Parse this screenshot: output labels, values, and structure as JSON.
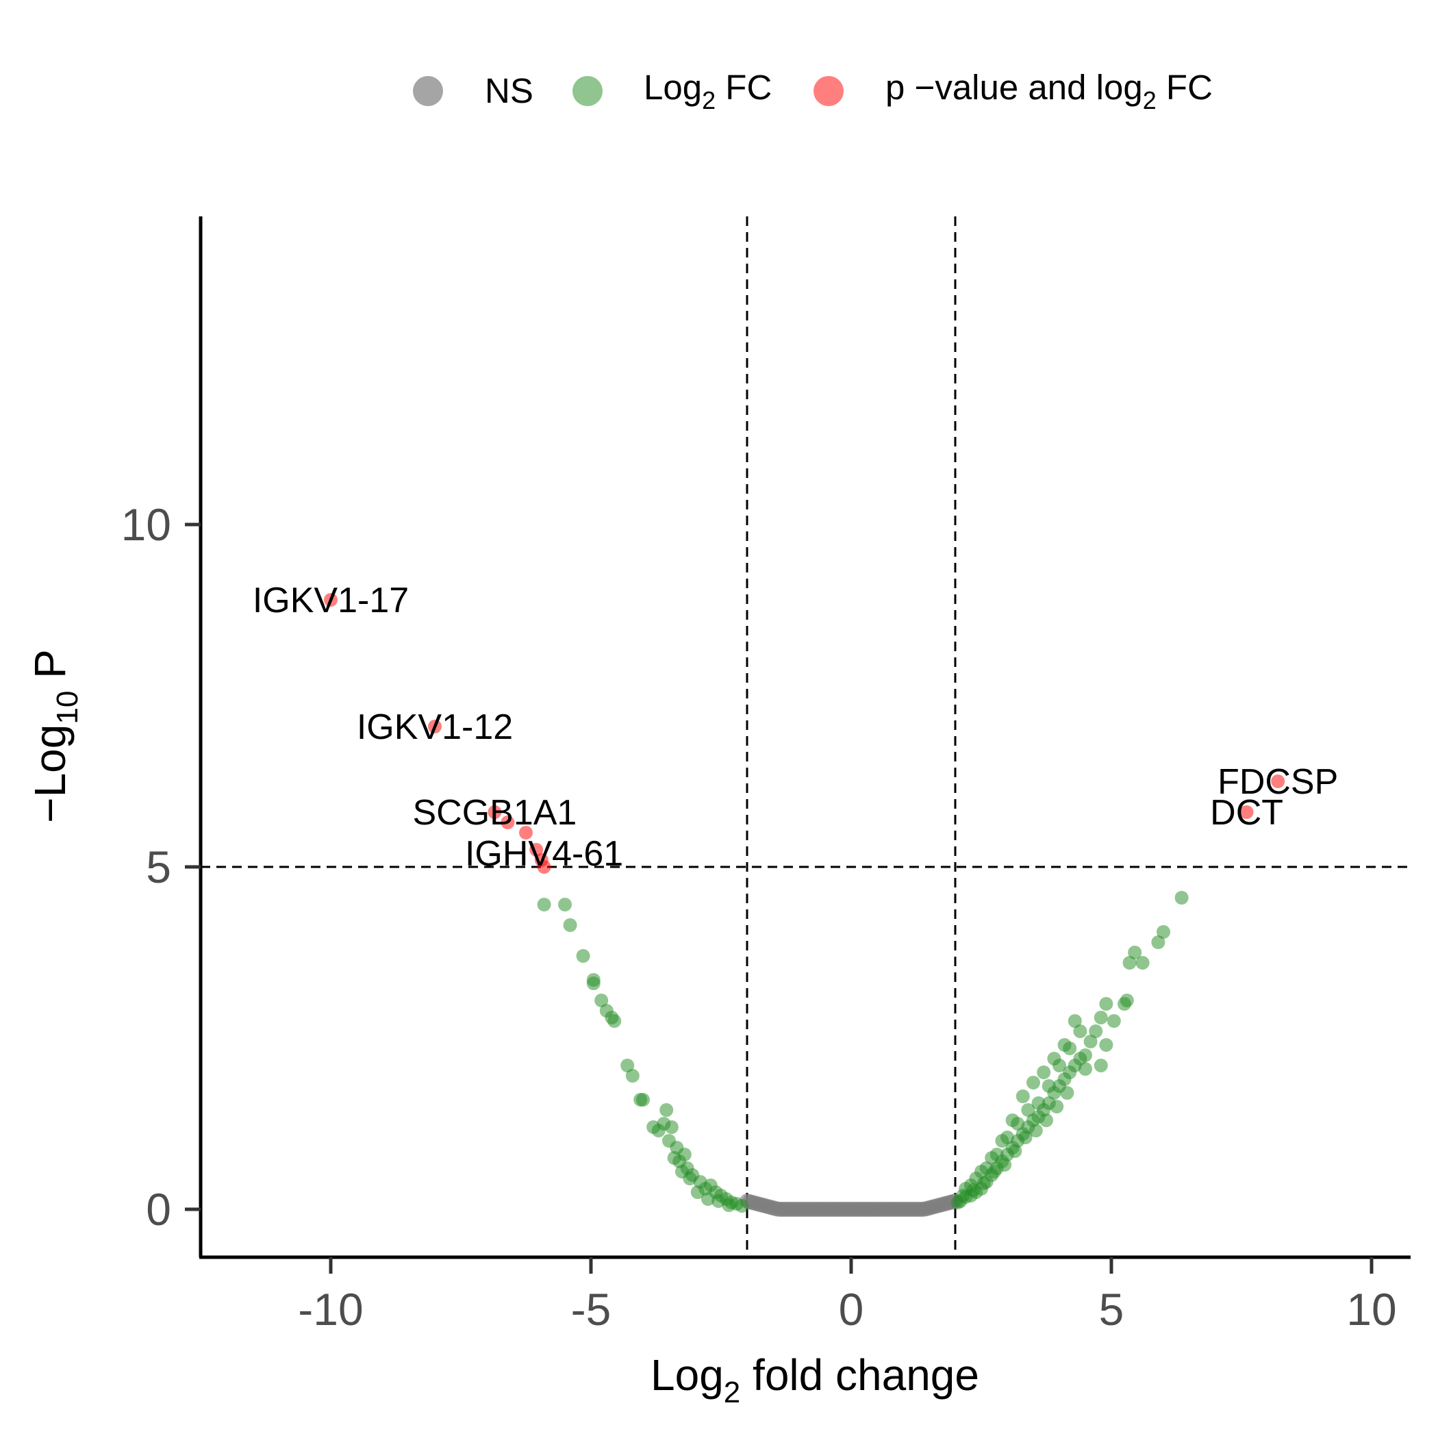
{
  "chart_data": {
    "type": "scatter",
    "xlabel_main": "Log",
    "xlabel_sub": "2",
    "xlabel_rest": " fold change",
    "ylabel_pre": "−Log",
    "ylabel_sub": "10",
    "ylabel_rest": " P",
    "xlim": [
      -12.5,
      10.75
    ],
    "ylim": [
      -0.7,
      14.5
    ],
    "x_ticks": [
      -10,
      -5,
      0,
      5,
      10
    ],
    "x_tick_labels": [
      "-10",
      "-5",
      "0",
      "5",
      "10"
    ],
    "y_ticks": [
      0,
      5,
      10
    ],
    "y_tick_labels": [
      "0",
      "5",
      "10"
    ],
    "thresholds": {
      "fc_cutoffs": [
        -2,
        2
      ],
      "p_cutoff": 5
    },
    "grid": false,
    "legend": {
      "position": "top",
      "items": [
        {
          "key": "ns",
          "label": "NS",
          "color": "#7f7f7f"
        },
        {
          "key": "fc",
          "label_main": "Log",
          "label_sub": "2",
          "label_rest": " FC",
          "color": "#228b22"
        },
        {
          "key": "both",
          "label_main": "p −value and log",
          "label_sub": "2",
          "label_rest": " FC",
          "color": "#ff0000"
        }
      ]
    },
    "series": [
      {
        "key": "both",
        "points": [
          [
            -10.0,
            8.9
          ],
          [
            -8.0,
            7.05
          ],
          [
            -6.85,
            5.8
          ],
          [
            -6.6,
            5.65
          ],
          [
            -6.25,
            5.5
          ],
          [
            -6.05,
            5.25
          ],
          [
            -5.95,
            5.1
          ],
          [
            -5.9,
            5.0
          ],
          [
            8.2,
            6.25
          ],
          [
            7.6,
            5.8
          ]
        ]
      },
      {
        "key": "fc",
        "points": [
          [
            -5.9,
            4.45
          ],
          [
            -5.5,
            4.45
          ],
          [
            -5.4,
            4.15
          ],
          [
            -5.15,
            3.7
          ],
          [
            -4.95,
            3.35
          ],
          [
            -4.95,
            3.3
          ],
          [
            -4.8,
            3.05
          ],
          [
            -4.7,
            2.9
          ],
          [
            -4.6,
            2.8
          ],
          [
            -4.55,
            2.75
          ],
          [
            -4.3,
            2.1
          ],
          [
            -4.2,
            1.95
          ],
          [
            -4.05,
            1.6
          ],
          [
            -4.0,
            1.6
          ],
          [
            -3.8,
            1.2
          ],
          [
            -3.7,
            1.15
          ],
          [
            -3.6,
            1.25
          ],
          [
            -3.55,
            1.45
          ],
          [
            -3.5,
            1.0
          ],
          [
            -3.45,
            1.2
          ],
          [
            -3.35,
            0.9
          ],
          [
            -3.3,
            0.7
          ],
          [
            -3.2,
            0.8
          ],
          [
            -3.15,
            0.6
          ],
          [
            -3.05,
            0.5
          ],
          [
            -2.9,
            0.4
          ],
          [
            -2.8,
            0.3
          ],
          [
            -2.7,
            0.35
          ],
          [
            -2.6,
            0.25
          ],
          [
            -2.5,
            0.2
          ],
          [
            -2.4,
            0.15
          ],
          [
            -2.3,
            0.1
          ],
          [
            -2.2,
            0.08
          ],
          [
            -2.1,
            0.05
          ],
          [
            -3.1,
            0.45
          ],
          [
            -2.95,
            0.25
          ],
          [
            -2.75,
            0.15
          ],
          [
            -2.55,
            0.12
          ],
          [
            -2.35,
            0.06
          ],
          [
            -3.4,
            0.75
          ],
          [
            -3.25,
            0.55
          ],
          [
            2.05,
            0.1
          ],
          [
            2.1,
            0.12
          ],
          [
            2.2,
            0.18
          ],
          [
            2.3,
            0.2
          ],
          [
            2.4,
            0.25
          ],
          [
            2.5,
            0.3
          ],
          [
            2.6,
            0.4
          ],
          [
            2.7,
            0.5
          ],
          [
            2.8,
            0.6
          ],
          [
            2.9,
            0.7
          ],
          [
            3.0,
            0.8
          ],
          [
            3.1,
            0.9
          ],
          [
            3.2,
            1.0
          ],
          [
            3.3,
            1.1
          ],
          [
            3.4,
            1.2
          ],
          [
            3.5,
            1.3
          ],
          [
            3.6,
            1.35
          ],
          [
            3.7,
            1.45
          ],
          [
            3.8,
            1.55
          ],
          [
            3.9,
            1.7
          ],
          [
            4.0,
            1.8
          ],
          [
            4.1,
            1.9
          ],
          [
            4.2,
            2.0
          ],
          [
            4.3,
            2.1
          ],
          [
            4.4,
            2.2
          ],
          [
            4.5,
            2.25
          ],
          [
            4.6,
            2.45
          ],
          [
            4.7,
            2.6
          ],
          [
            4.8,
            2.8
          ],
          [
            4.9,
            3.0
          ],
          [
            2.2,
            0.3
          ],
          [
            2.4,
            0.45
          ],
          [
            2.6,
            0.6
          ],
          [
            2.8,
            0.8
          ],
          [
            3.0,
            1.05
          ],
          [
            3.2,
            1.25
          ],
          [
            3.4,
            1.45
          ],
          [
            3.6,
            1.55
          ],
          [
            3.8,
            1.8
          ],
          [
            4.0,
            2.1
          ],
          [
            4.2,
            2.35
          ],
          [
            4.4,
            2.6
          ],
          [
            4.5,
            2.05
          ],
          [
            4.3,
            2.75
          ],
          [
            4.1,
            2.4
          ],
          [
            3.9,
            2.2
          ],
          [
            3.7,
            2.0
          ],
          [
            3.5,
            1.85
          ],
          [
            3.3,
            1.65
          ],
          [
            3.1,
            1.3
          ],
          [
            2.9,
            1.0
          ],
          [
            2.7,
            0.75
          ],
          [
            2.5,
            0.55
          ],
          [
            2.3,
            0.35
          ],
          [
            2.15,
            0.2
          ],
          [
            2.35,
            0.28
          ],
          [
            2.55,
            0.38
          ],
          [
            2.75,
            0.55
          ],
          [
            2.95,
            0.65
          ],
          [
            3.15,
            0.85
          ],
          [
            3.35,
            1.05
          ],
          [
            3.55,
            1.15
          ],
          [
            3.75,
            1.3
          ],
          [
            3.95,
            1.5
          ],
          [
            4.15,
            1.7
          ],
          [
            4.8,
            2.1
          ],
          [
            4.9,
            2.4
          ],
          [
            5.05,
            2.75
          ],
          [
            5.25,
            3.0
          ],
          [
            5.35,
            3.6
          ],
          [
            5.45,
            3.75
          ],
          [
            5.6,
            3.6
          ],
          [
            5.3,
            3.05
          ],
          [
            5.9,
            3.9
          ],
          [
            6.0,
            4.05
          ],
          [
            6.35,
            4.55
          ]
        ]
      },
      {
        "key": "ns",
        "x_from": -2.0,
        "x_to": 2.0,
        "y_base": 0.0,
        "y_edge": 0.12
      }
    ],
    "gene_labels": [
      {
        "text": "IGKV1-17",
        "x": -10.0,
        "y": 8.9
      },
      {
        "text": "IGKV1-12",
        "x": -8.0,
        "y": 7.05
      },
      {
        "text": "SCGB1A1",
        "x": -6.85,
        "y": 5.8
      },
      {
        "text": "IGHV4-61",
        "x": -5.9,
        "y": 5.2
      },
      {
        "text": "FDCSP",
        "x": 8.2,
        "y": 6.25
      },
      {
        "text": "DCT",
        "x": 7.6,
        "y": 5.8
      }
    ]
  }
}
